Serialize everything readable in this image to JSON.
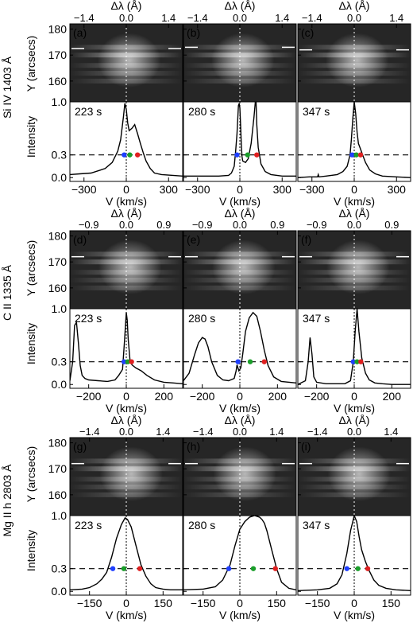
{
  "figure": {
    "row_ylabels": [
      "Si IV 1403 Å",
      "C II 1335 Å",
      "Mg II h 2803 Å"
    ],
    "spec_ylabel": "Y (arcsecs)",
    "int_ylabel": "Intensity",
    "xlabel": "V (km/s)",
    "top_xlabel": "Δλ (Å)"
  },
  "chart_data": [
    {
      "type": "line",
      "panel": "a",
      "time_label": "223 s",
      "row": 0,
      "col": 0,
      "xlim": [
        -400,
        400
      ],
      "ylim": [
        -0.05,
        1.0
      ],
      "xticks": [
        -300,
        0,
        300
      ],
      "top_ticks": [
        "−1.4",
        "0.0",
        "1.4"
      ],
      "top_tick_values": [
        -300,
        0,
        300
      ],
      "spec_ylim": [
        152,
        182
      ],
      "spec_yticks": [
        160,
        170,
        180
      ],
      "marker_pos": [
        0,
        0,
        85
      ],
      "line_y": 172.5,
      "x": [
        -400,
        -330,
        -250,
        -150,
        -100,
        -60,
        -40,
        -20,
        -10,
        0,
        10,
        20,
        40,
        60,
        80,
        100,
        120,
        140,
        170,
        200,
        250,
        330,
        400
      ],
      "y": [
        0.04,
        0.05,
        0.06,
        0.12,
        0.2,
        0.35,
        0.5,
        0.8,
        0.98,
        0.9,
        0.72,
        0.62,
        0.65,
        0.7,
        0.58,
        0.45,
        0.33,
        0.22,
        0.12,
        0.06,
        0.04,
        0.03,
        0.02
      ],
      "points": [
        {
          "x": -15,
          "y": 0.3,
          "color": "#1f3fff"
        },
        {
          "x": 25,
          "y": 0.3,
          "color": "#1a9e2a"
        },
        {
          "x": 80,
          "y": 0.3,
          "color": "#e02020"
        }
      ]
    },
    {
      "type": "line",
      "panel": "b",
      "time_label": "280 s",
      "row": 0,
      "col": 1,
      "xlim": [
        -400,
        400
      ],
      "ylim": [
        -0.05,
        1.0
      ],
      "xticks": [
        -300,
        0,
        300
      ],
      "top_ticks": [
        "−1.4",
        "0.0",
        "1.4"
      ],
      "top_tick_values": [
        -300,
        0,
        300
      ],
      "spec_ylim": [
        152,
        182
      ],
      "spec_yticks": [
        160,
        170,
        180
      ],
      "marker_pos": [
        0,
        0,
        90
      ],
      "line_y": 173,
      "x": [
        -400,
        -150,
        -80,
        -60,
        -40,
        -30,
        -20,
        -10,
        -5,
        0,
        5,
        10,
        15,
        20,
        40,
        60,
        80,
        100,
        110,
        115,
        120,
        130,
        150,
        180,
        220,
        300,
        400
      ],
      "y": [
        0.02,
        0.02,
        0.03,
        0.06,
        0.15,
        0.35,
        0.58,
        0.95,
        0.98,
        0.92,
        0.7,
        0.45,
        0.28,
        0.22,
        0.2,
        0.25,
        0.45,
        0.8,
        1.0,
        1.0,
        0.7,
        0.4,
        0.18,
        0.08,
        0.04,
        0.02,
        0.02
      ],
      "points": [
        {
          "x": -20,
          "y": 0.3,
          "color": "#1f3fff"
        },
        {
          "x": 55,
          "y": 0.3,
          "color": "#1a9e2a"
        },
        {
          "x": 120,
          "y": 0.3,
          "color": "#e02020"
        }
      ]
    },
    {
      "type": "line",
      "panel": "c",
      "time_label": "347 s",
      "row": 0,
      "col": 2,
      "xlim": [
        -400,
        400
      ],
      "ylim": [
        -0.05,
        1.0
      ],
      "xticks": [
        -300,
        0,
        300
      ],
      "top_ticks": [
        "−1.4",
        "0.0",
        "1.4"
      ],
      "top_tick_values": [
        -300,
        0,
        300
      ],
      "spec_ylim": [
        152,
        182
      ],
      "spec_yticks": [
        160,
        170,
        180
      ],
      "marker_pos": [
        0,
        0,
        80
      ],
      "line_y": 172,
      "x": [
        -400,
        -320,
        -260,
        -255,
        -250,
        -200,
        -120,
        -80,
        -50,
        -30,
        -20,
        -10,
        0,
        10,
        20,
        30,
        40,
        60,
        80,
        110,
        150,
        200,
        300,
        400
      ],
      "y": [
        0.0,
        0.01,
        0.01,
        0.04,
        0.01,
        0.02,
        0.04,
        0.08,
        0.15,
        0.3,
        0.5,
        0.78,
        1.0,
        0.85,
        0.6,
        0.45,
        0.4,
        0.3,
        0.2,
        0.1,
        0.05,
        0.02,
        0.01,
        0.0
      ],
      "points": [
        {
          "x": -15,
          "y": 0.3,
          "color": "#1f3fff"
        },
        {
          "x": 15,
          "y": 0.3,
          "color": "#1a9e2a"
        },
        {
          "x": 45,
          "y": 0.3,
          "color": "#e02020"
        }
      ]
    },
    {
      "type": "line",
      "panel": "d",
      "time_label": "223 s",
      "row": 1,
      "col": 0,
      "xlim": [
        -300,
        300
      ],
      "ylim": [
        -0.05,
        1.0
      ],
      "xticks": [
        -200,
        0,
        200
      ],
      "top_ticks": [
        "−0.9",
        "0.0",
        "0.9"
      ],
      "top_tick_values": [
        -200,
        0,
        200
      ],
      "spec_ylim": [
        152,
        182
      ],
      "spec_yticks": [
        160,
        170,
        180
      ],
      "marker_pos": [
        0,
        0,
        80
      ],
      "line_y": 172,
      "x": [
        -300,
        -285,
        -275,
        -265,
        -255,
        -245,
        -235,
        -220,
        -200,
        -150,
        -100,
        -60,
        -40,
        -20,
        -10,
        0,
        5,
        10,
        20,
        30,
        50,
        80,
        110,
        150,
        200,
        250,
        300
      ],
      "y": [
        0.05,
        0.3,
        0.78,
        0.82,
        0.55,
        0.25,
        0.12,
        0.08,
        0.06,
        0.05,
        0.04,
        0.06,
        0.12,
        0.2,
        0.55,
        0.95,
        0.85,
        0.6,
        0.32,
        0.26,
        0.22,
        0.18,
        0.12,
        0.06,
        0.03,
        0.02,
        0.01
      ],
      "points": [
        {
          "x": -12,
          "y": 0.3,
          "color": "#1f3fff"
        },
        {
          "x": 8,
          "y": 0.3,
          "color": "#1a9e2a"
        },
        {
          "x": 28,
          "y": 0.3,
          "color": "#e02020"
        }
      ]
    },
    {
      "type": "line",
      "panel": "e",
      "time_label": "280 s",
      "row": 1,
      "col": 1,
      "xlim": [
        -300,
        300
      ],
      "ylim": [
        -0.05,
        1.0
      ],
      "xticks": [
        -200,
        0,
        200
      ],
      "top_ticks": [
        "−0.9",
        "0.0",
        "0.9"
      ],
      "top_tick_values": [
        -200,
        0,
        200
      ],
      "spec_ylim": [
        152,
        182
      ],
      "spec_yticks": [
        160,
        170,
        180
      ],
      "marker_pos": [
        0,
        0,
        80
      ],
      "line_y": 172,
      "x": [
        -300,
        -270,
        -240,
        -220,
        -200,
        -185,
        -170,
        -150,
        -120,
        -90,
        -60,
        -30,
        -20,
        -15,
        -10,
        -5,
        5,
        15,
        30,
        50,
        70,
        90,
        110,
        130,
        150,
        180,
        220,
        300
      ],
      "y": [
        0.05,
        0.15,
        0.4,
        0.55,
        0.62,
        0.6,
        0.5,
        0.3,
        0.12,
        0.06,
        0.05,
        0.08,
        0.18,
        0.26,
        0.22,
        0.18,
        0.22,
        0.4,
        0.7,
        0.88,
        0.95,
        0.9,
        0.7,
        0.45,
        0.25,
        0.1,
        0.04,
        0.02
      ],
      "points": [
        {
          "x": -10,
          "y": 0.3,
          "color": "#1f3fff"
        },
        {
          "x": 55,
          "y": 0.3,
          "color": "#1a9e2a"
        },
        {
          "x": 130,
          "y": 0.3,
          "color": "#e02020"
        }
      ]
    },
    {
      "type": "line",
      "panel": "f",
      "time_label": "347 s",
      "row": 1,
      "col": 2,
      "xlim": [
        -300,
        300
      ],
      "ylim": [
        -0.05,
        1.0
      ],
      "xticks": [
        -200,
        0,
        200
      ],
      "top_ticks": [
        "−0.9",
        "0.0",
        "0.9"
      ],
      "top_tick_values": [
        -200,
        0,
        200
      ],
      "spec_ylim": [
        152,
        182
      ],
      "spec_yticks": [
        160,
        170,
        180
      ],
      "marker_pos": [
        0,
        0,
        80
      ],
      "line_y": 172,
      "x": [
        -300,
        -260,
        -245,
        -235,
        -225,
        -215,
        -200,
        -150,
        -100,
        -50,
        -20,
        -5,
        5,
        15,
        25,
        40,
        60,
        80,
        110,
        150,
        200,
        300
      ],
      "y": [
        0.0,
        0.05,
        0.3,
        0.62,
        0.4,
        0.1,
        0.03,
        0.01,
        0.01,
        0.01,
        0.05,
        0.3,
        0.7,
        1.0,
        0.7,
        0.35,
        0.15,
        0.06,
        0.02,
        0.01,
        0.0,
        0.0
      ],
      "points": [
        {
          "x": -5,
          "y": 0.3,
          "color": "#1f3fff"
        },
        {
          "x": 15,
          "y": 0.3,
          "color": "#1a9e2a"
        },
        {
          "x": 35,
          "y": 0.3,
          "color": "#e02020"
        }
      ]
    },
    {
      "type": "line",
      "panel": "g",
      "time_label": "223 s",
      "row": 2,
      "col": 0,
      "xlim": [
        -230,
        230
      ],
      "ylim": [
        -0.05,
        1.0
      ],
      "xticks": [
        -150,
        0,
        150
      ],
      "top_ticks": [
        "−1.4",
        "0.0",
        "1.4"
      ],
      "top_tick_values": [
        -150,
        0,
        150
      ],
      "spec_ylim": [
        152,
        182
      ],
      "spec_yticks": [
        160,
        170,
        180
      ],
      "marker_pos": [
        0,
        0,
        85
      ],
      "line_y": 172,
      "x": [
        -230,
        -180,
        -150,
        -120,
        -100,
        -80,
        -60,
        -40,
        -20,
        -5,
        5,
        20,
        40,
        60,
        80,
        100,
        120,
        150,
        180,
        230
      ],
      "y": [
        0.02,
        0.03,
        0.05,
        0.1,
        0.16,
        0.25,
        0.45,
        0.7,
        0.88,
        0.97,
        0.95,
        0.85,
        0.6,
        0.35,
        0.2,
        0.1,
        0.05,
        0.03,
        0.02,
        0.02
      ],
      "points": [
        {
          "x": -55,
          "y": 0.3,
          "color": "#1f3fff"
        },
        {
          "x": -10,
          "y": 0.3,
          "color": "#1a9e2a"
        },
        {
          "x": 55,
          "y": 0.3,
          "color": "#e02020"
        }
      ]
    },
    {
      "type": "line",
      "panel": "h",
      "time_label": "280 s",
      "row": 2,
      "col": 1,
      "xlim": [
        -230,
        230
      ],
      "ylim": [
        -0.05,
        1.0
      ],
      "xticks": [
        -150,
        0,
        150
      ],
      "top_ticks": [
        "−1.4",
        "0.0",
        "1.4"
      ],
      "top_tick_values": [
        -150,
        0,
        150
      ],
      "spec_ylim": [
        152,
        182
      ],
      "spec_yticks": [
        160,
        170,
        180
      ],
      "marker_pos": [
        0,
        0,
        85
      ],
      "line_y": 172,
      "x": [
        -230,
        -150,
        -100,
        -70,
        -40,
        -20,
        0,
        20,
        40,
        60,
        80,
        90,
        100,
        110,
        130,
        150,
        170,
        200,
        230
      ],
      "y": [
        0.02,
        0.03,
        0.06,
        0.15,
        0.35,
        0.6,
        0.82,
        0.92,
        0.98,
        1.0,
        0.98,
        0.95,
        0.9,
        0.8,
        0.55,
        0.3,
        0.12,
        0.04,
        0.02
      ],
      "points": [
        {
          "x": -45,
          "y": 0.3,
          "color": "#1f3fff"
        },
        {
          "x": 55,
          "y": 0.3,
          "color": "#1a9e2a"
        },
        {
          "x": 145,
          "y": 0.3,
          "color": "#e02020"
        }
      ]
    },
    {
      "type": "line",
      "panel": "i",
      "time_label": "347 s",
      "row": 2,
      "col": 2,
      "xlim": [
        -230,
        230
      ],
      "ylim": [
        -0.05,
        1.0
      ],
      "xticks": [
        -150,
        0,
        150
      ],
      "top_ticks": [
        "−1.4",
        "0.0",
        "1.4"
      ],
      "top_tick_values": [
        -150,
        0,
        150
      ],
      "spec_ylim": [
        152,
        182
      ],
      "spec_yticks": [
        160,
        170,
        180
      ],
      "marker_pos": [
        0,
        0,
        85
      ],
      "line_y": 172,
      "x": [
        -230,
        -150,
        -100,
        -70,
        -50,
        -30,
        -15,
        0,
        10,
        20,
        30,
        45,
        60,
        80,
        100,
        130,
        170,
        230
      ],
      "y": [
        0.01,
        0.02,
        0.04,
        0.1,
        0.22,
        0.5,
        0.8,
        1.0,
        0.92,
        0.72,
        0.55,
        0.4,
        0.28,
        0.15,
        0.08,
        0.04,
        0.02,
        0.01
      ],
      "points": [
        {
          "x": -30,
          "y": 0.3,
          "color": "#1f3fff"
        },
        {
          "x": 15,
          "y": 0.3,
          "color": "#1a9e2a"
        },
        {
          "x": 55,
          "y": 0.3,
          "color": "#e02020"
        }
      ]
    }
  ]
}
